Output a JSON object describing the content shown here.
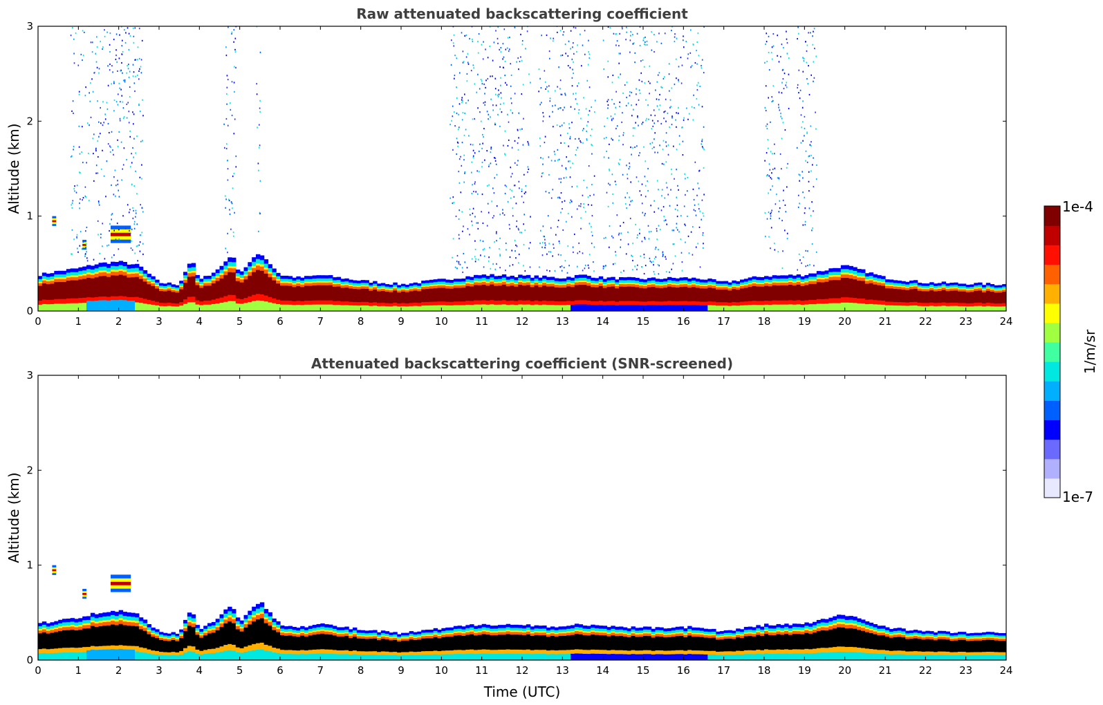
{
  "chart_data": [
    {
      "type": "heatmap",
      "title": "Raw attenuated backscattering coefficient",
      "xlabel": "",
      "ylabel": "Altitude (km)",
      "xlim": [
        0,
        24
      ],
      "ylim": [
        0,
        3
      ],
      "xticks": [
        "0",
        "1",
        "2",
        "3",
        "4",
        "5",
        "6",
        "7",
        "8",
        "9",
        "10",
        "11",
        "12",
        "13",
        "14",
        "15",
        "16",
        "17",
        "18",
        "19",
        "20",
        "21",
        "22",
        "23",
        "24"
      ],
      "yticks": [
        "0",
        "1",
        "2",
        "3"
      ],
      "boundary_layer_top_km": {
        "x": [
          0,
          0.5,
          1,
          1.5,
          2,
          2.5,
          3,
          3.5,
          3.8,
          4,
          4.5,
          4.8,
          5,
          5.5,
          6,
          6.5,
          7,
          8,
          9,
          10,
          11,
          12,
          13,
          13.5,
          14,
          15,
          16,
          16.5,
          17,
          18,
          19,
          20,
          20.5,
          21,
          22,
          23,
          24
        ],
        "y": [
          0.38,
          0.42,
          0.45,
          0.5,
          0.52,
          0.48,
          0.3,
          0.28,
          0.55,
          0.32,
          0.45,
          0.6,
          0.4,
          0.62,
          0.38,
          0.35,
          0.38,
          0.32,
          0.28,
          0.33,
          0.38,
          0.37,
          0.35,
          0.38,
          0.35,
          0.34,
          0.35,
          0.34,
          0.3,
          0.37,
          0.38,
          0.48,
          0.42,
          0.35,
          0.3,
          0.29,
          0.28
        ]
      },
      "noise_regions_hours": [
        [
          0.8,
          2.6
        ],
        [
          4.6,
          4.9
        ],
        [
          5.4,
          5.5
        ],
        [
          10.2,
          12.2
        ],
        [
          12.4,
          13.8
        ],
        [
          14,
          16.5
        ],
        [
          18,
          18.6
        ],
        [
          18.8,
          19.3
        ]
      ],
      "cloud_features": [
        {
          "x": [
            0.35,
            0.45
          ],
          "y": [
            0.9,
            1.0
          ]
        },
        {
          "x": [
            1.8,
            2.3
          ],
          "y": [
            0.72,
            0.9
          ]
        },
        {
          "x": [
            1.1,
            1.2
          ],
          "y": [
            0.65,
            0.75
          ]
        }
      ]
    },
    {
      "type": "heatmap",
      "title": "Attenuated backscattering coefficient (SNR-screened)",
      "xlabel": "Time (UTC)",
      "ylabel": "Altitude (km)",
      "xlim": [
        0,
        24
      ],
      "ylim": [
        0,
        3
      ],
      "xticks": [
        "0",
        "1",
        "2",
        "3",
        "4",
        "5",
        "6",
        "7",
        "8",
        "9",
        "10",
        "11",
        "12",
        "13",
        "14",
        "15",
        "16",
        "17",
        "18",
        "19",
        "20",
        "21",
        "22",
        "23",
        "24"
      ],
      "yticks": [
        "0",
        "1",
        "2",
        "3"
      ],
      "boundary_layer_top_km": {
        "x": [
          0,
          0.5,
          1,
          1.5,
          2,
          2.5,
          3,
          3.5,
          3.8,
          4,
          4.5,
          4.8,
          5,
          5.5,
          6,
          6.5,
          7,
          8,
          9,
          10,
          11,
          12,
          13,
          13.5,
          14,
          15,
          16,
          16.5,
          17,
          18,
          19,
          20,
          20.5,
          21,
          22,
          23,
          24
        ],
        "y": [
          0.38,
          0.42,
          0.45,
          0.5,
          0.52,
          0.48,
          0.3,
          0.28,
          0.55,
          0.32,
          0.45,
          0.6,
          0.4,
          0.62,
          0.38,
          0.35,
          0.38,
          0.32,
          0.28,
          0.33,
          0.38,
          0.37,
          0.35,
          0.38,
          0.35,
          0.34,
          0.35,
          0.34,
          0.3,
          0.37,
          0.38,
          0.48,
          0.42,
          0.35,
          0.3,
          0.29,
          0.28
        ]
      },
      "cloud_features": [
        {
          "x": [
            0.35,
            0.45
          ],
          "y": [
            0.9,
            1.0
          ]
        },
        {
          "x": [
            1.8,
            2.3
          ],
          "y": [
            0.72,
            0.9
          ]
        },
        {
          "x": [
            1.1,
            1.2
          ],
          "y": [
            0.65,
            0.75
          ]
        }
      ]
    }
  ],
  "colorbar": {
    "label": "1/m/sr",
    "max_label": "1e-4",
    "min_label": "1e-7",
    "colors": [
      "#e8e8ff",
      "#b0b0ff",
      "#6a6aff",
      "#0000ff",
      "#0060ff",
      "#00b0ff",
      "#00e8e0",
      "#40ffa0",
      "#a0ff40",
      "#ffff00",
      "#ffb000",
      "#ff6000",
      "#ff1000",
      "#c00000",
      "#800000"
    ]
  }
}
